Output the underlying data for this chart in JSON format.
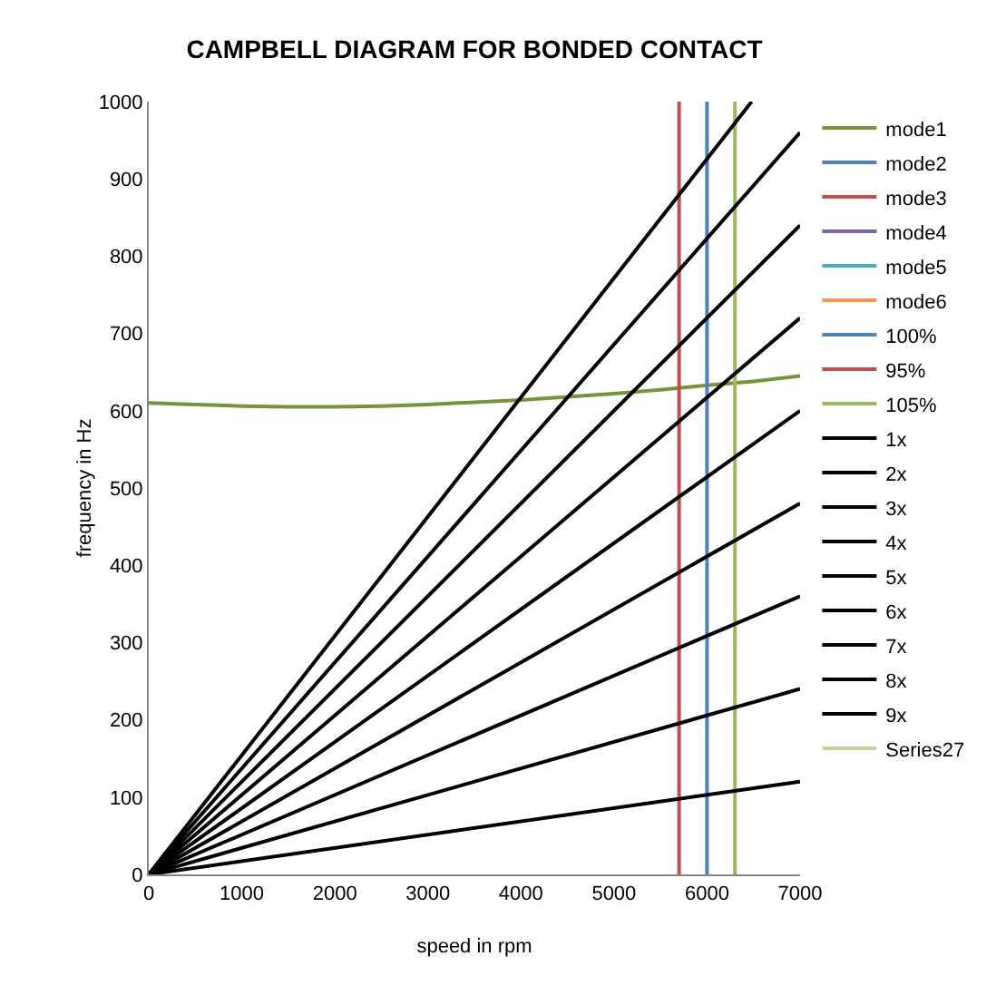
{
  "chart_data": {
    "type": "line",
    "title": "CAMPBELL DIAGRAM FOR BONDED CONTACT",
    "xlabel": "speed in rpm",
    "ylabel": "frequency in Hz",
    "xlim": [
      0,
      7000
    ],
    "xticks": [
      0,
      1000,
      2000,
      3000,
      4000,
      5000,
      6000,
      7000
    ],
    "ylim": [
      0,
      1000
    ],
    "yticks": [
      0,
      100,
      200,
      300,
      400,
      500,
      600,
      700,
      800,
      900,
      1000
    ],
    "grid": false,
    "legend": "right",
    "marker": "none",
    "line_style": "solid",
    "series": [
      {
        "name": "mode1",
        "color": "#77933c",
        "x": [
          0,
          500,
          1000,
          1500,
          2000,
          2500,
          3000,
          3500,
          4000,
          4500,
          5000,
          5500,
          6000,
          6500,
          7000
        ],
        "values": [
          610,
          608,
          606,
          605,
          605,
          606,
          608,
          611,
          614,
          618,
          622,
          627,
          633,
          638,
          645
        ]
      },
      {
        "name": "mode2",
        "color": "#4f81bd"
      },
      {
        "name": "mode3",
        "color": "#c0504d"
      },
      {
        "name": "mode4",
        "color": "#8064a2"
      },
      {
        "name": "mode5",
        "color": "#4bacc6"
      },
      {
        "name": "mode6",
        "color": "#f79646"
      },
      {
        "name": "100%",
        "color": "#4f81bd",
        "x": [
          6000,
          6000
        ],
        "values": [
          0,
          1000
        ]
      },
      {
        "name": "95%",
        "color": "#c0504d",
        "x": [
          5700,
          5700
        ],
        "values": [
          0,
          1000
        ]
      },
      {
        "name": "105%",
        "color": "#9bbb59",
        "x": [
          6300,
          6300
        ],
        "values": [
          0,
          1000
        ]
      },
      {
        "name": "1x",
        "color": "#000000",
        "x": [
          0,
          7000
        ],
        "values": [
          0,
          120
        ]
      },
      {
        "name": "2x",
        "color": "#000000",
        "x": [
          0,
          7000
        ],
        "values": [
          0,
          240
        ]
      },
      {
        "name": "3x",
        "color": "#000000",
        "x": [
          0,
          7000
        ],
        "values": [
          0,
          360
        ]
      },
      {
        "name": "4x",
        "color": "#000000",
        "x": [
          0,
          7000
        ],
        "values": [
          0,
          480
        ]
      },
      {
        "name": "5x",
        "color": "#000000",
        "x": [
          0,
          7000
        ],
        "values": [
          0,
          600
        ]
      },
      {
        "name": "6x",
        "color": "#000000",
        "x": [
          0,
          7000
        ],
        "values": [
          0,
          720
        ]
      },
      {
        "name": "7x",
        "color": "#000000",
        "x": [
          0,
          7000
        ],
        "values": [
          0,
          840
        ]
      },
      {
        "name": "8x",
        "color": "#000000",
        "x": [
          0,
          7000
        ],
        "values": [
          0,
          960
        ]
      },
      {
        "name": "9x",
        "color": "#000000",
        "x": [
          0,
          6480
        ],
        "values": [
          0,
          1000
        ]
      },
      {
        "name": "Series27",
        "color": "#c3d69b"
      }
    ]
  }
}
